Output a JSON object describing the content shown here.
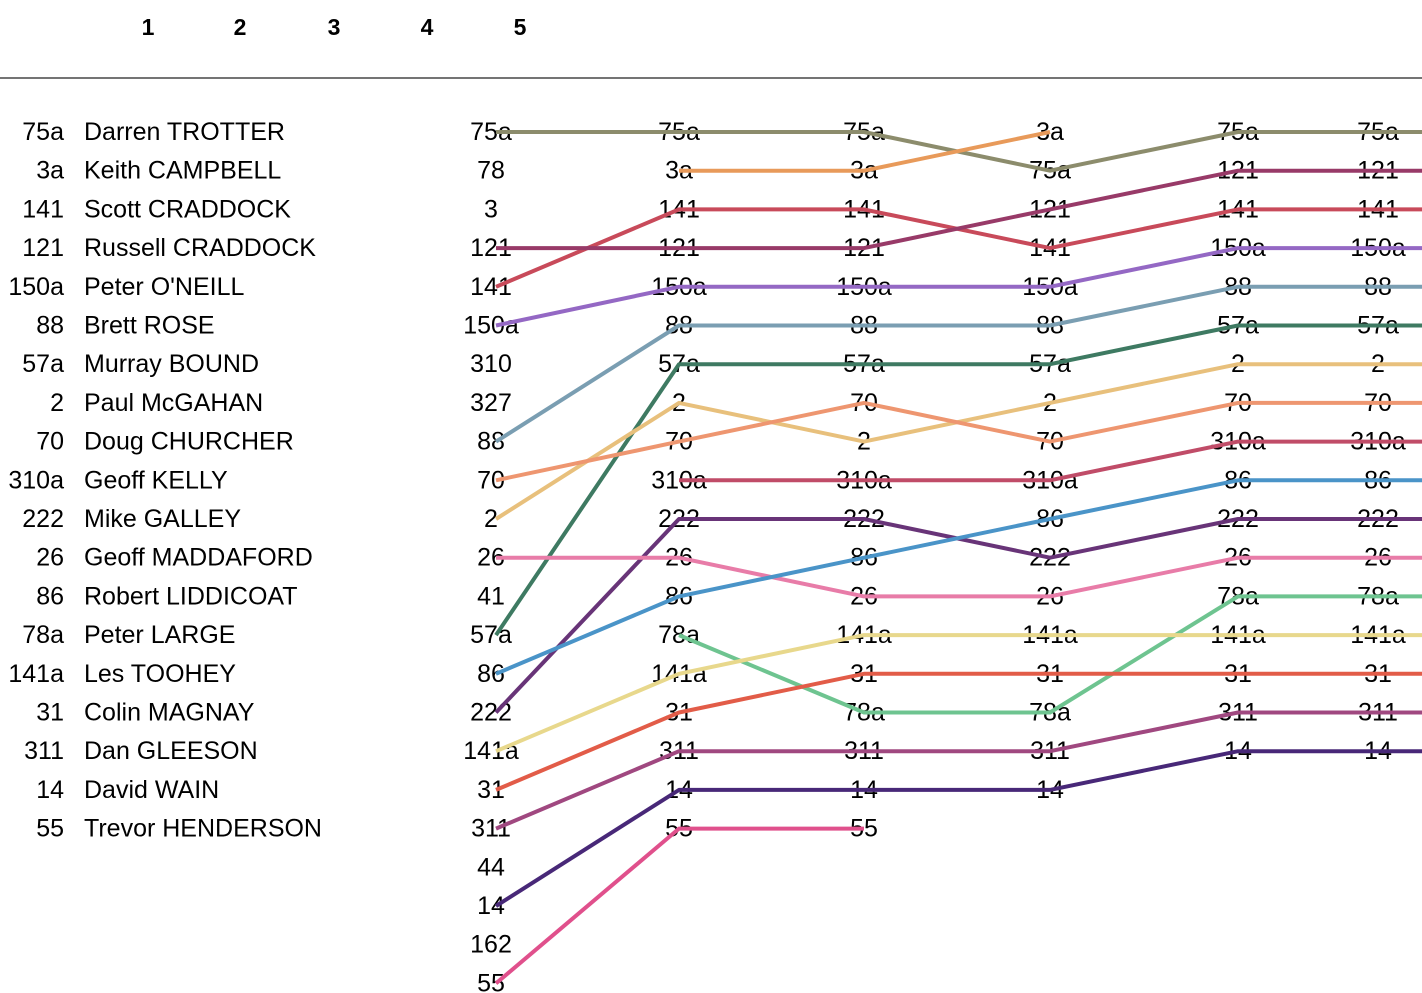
{
  "chart_data": {
    "type": "line",
    "title": "",
    "xlabel": "",
    "ylabel": "",
    "grid": false,
    "legend": "none",
    "header_columns": [
      "1",
      "2",
      "3",
      "4",
      "5"
    ],
    "rows": [
      {
        "number": "75a",
        "name": "Darren TROTTER"
      },
      {
        "number": "3a",
        "name": "Keith CAMPBELL"
      },
      {
        "number": "141",
        "name": "Scott CRADDOCK"
      },
      {
        "number": "121",
        "name": "Russell CRADDOCK"
      },
      {
        "number": "150a",
        "name": "Peter O'NEILL"
      },
      {
        "number": "88",
        "name": "Brett ROSE"
      },
      {
        "number": "57a",
        "name": "Murray BOUND"
      },
      {
        "number": "2",
        "name": "Paul McGAHAN"
      },
      {
        "number": "70",
        "name": "Doug CHURCHER"
      },
      {
        "number": "310a",
        "name": "Geoff KELLY"
      },
      {
        "number": "222",
        "name": "Mike GALLEY"
      },
      {
        "number": "26",
        "name": "Geoff MADDAFORD"
      },
      {
        "number": "86",
        "name": "Robert LIDDICOAT"
      },
      {
        "number": "78a",
        "name": "Peter LARGE"
      },
      {
        "number": "141a",
        "name": "Les TOOHEY"
      },
      {
        "number": "31",
        "name": "Colin MAGNAY"
      },
      {
        "number": "311",
        "name": "Dan GLEESON"
      },
      {
        "number": "14",
        "name": "David WAIN"
      },
      {
        "number": "55",
        "name": "Trevor HENDERSON"
      }
    ],
    "position_columns": [
      [
        "75a",
        "78",
        "3",
        "121",
        "141",
        "150a",
        "310",
        "327",
        "88",
        "70",
        "2",
        "26",
        "41",
        "57a",
        "86",
        "222",
        "141a",
        "31",
        "311",
        "44",
        "14",
        "162",
        "55"
      ],
      [
        "75a",
        "3a",
        "141",
        "121",
        "150a",
        "88",
        "57a",
        "2",
        "70",
        "310a",
        "222",
        "26",
        "86",
        "78a",
        "141a",
        "31",
        "311",
        "14",
        "55"
      ],
      [
        "75a",
        "3a",
        "141",
        "121",
        "150a",
        "88",
        "57a",
        "70",
        "2",
        "310a",
        "222",
        "86",
        "26",
        "141a",
        "31",
        "78a",
        "311",
        "14",
        "55"
      ],
      [
        "3a",
        "75a",
        "121",
        "141",
        "150a",
        "88",
        "57a",
        "2",
        "70",
        "310a",
        "86",
        "222",
        "26",
        "141a",
        "31",
        "78a",
        "311",
        "14"
      ],
      [
        "75a",
        "121",
        "141",
        "150a",
        "88",
        "57a",
        "2",
        "70",
        "310a",
        "86",
        "222",
        "26",
        "78a",
        "141a",
        "31",
        "311",
        "14"
      ],
      [
        "75a",
        "121",
        "141",
        "150a",
        "88",
        "57a",
        "2",
        "70",
        "310a",
        "86",
        "222",
        "26",
        "78a",
        "141a",
        "31",
        "311",
        "14"
      ]
    ],
    "series": [
      {
        "values": [
          1,
          1,
          1,
          2,
          1,
          1
        ],
        "color": "#8c8c6c"
      },
      {
        "values": [
          null,
          2,
          2,
          1,
          null,
          null
        ],
        "color": "#e89a5a"
      },
      {
        "values": [
          5,
          3,
          3,
          4,
          3,
          3
        ],
        "color": "#c84a5a"
      },
      {
        "values": [
          4,
          4,
          4,
          3,
          2,
          2
        ],
        "color": "#983a68"
      },
      {
        "values": [
          6,
          5,
          5,
          5,
          4,
          4
        ],
        "color": "#9468c4"
      },
      {
        "values": [
          9,
          6,
          6,
          6,
          5,
          5
        ],
        "color": "#7a9eb2"
      },
      {
        "values": [
          14,
          7,
          7,
          7,
          6,
          6
        ],
        "color": "#3e7a62"
      },
      {
        "values": [
          11,
          8,
          9,
          8,
          7,
          7
        ],
        "color": "#e8c07c"
      },
      {
        "values": [
          10,
          9,
          8,
          9,
          8,
          8
        ],
        "color": "#ee9670"
      },
      {
        "values": [
          null,
          10,
          10,
          10,
          9,
          9
        ],
        "color": "#c04c68"
      },
      {
        "values": [
          16,
          11,
          11,
          12,
          11,
          11
        ],
        "color": "#683478"
      },
      {
        "values": [
          12,
          12,
          13,
          13,
          12,
          12
        ],
        "color": "#e87ca8"
      },
      {
        "values": [
          15,
          13,
          12,
          11,
          10,
          10
        ],
        "color": "#4a94c8"
      },
      {
        "values": [
          null,
          14,
          16,
          16,
          13,
          13
        ],
        "color": "#6ec490"
      },
      {
        "values": [
          17,
          15,
          14,
          14,
          14,
          14
        ],
        "color": "#e8d88c"
      },
      {
        "values": [
          18,
          16,
          15,
          15,
          15,
          15
        ],
        "color": "#e25c48"
      },
      {
        "values": [
          19,
          17,
          17,
          17,
          16,
          16
        ],
        "color": "#a04880"
      },
      {
        "values": [
          21,
          18,
          18,
          18,
          17,
          17
        ],
        "color": "#482878"
      },
      {
        "values": [
          23,
          19,
          19,
          null,
          null,
          null
        ],
        "color": "#e0508c"
      }
    ]
  }
}
